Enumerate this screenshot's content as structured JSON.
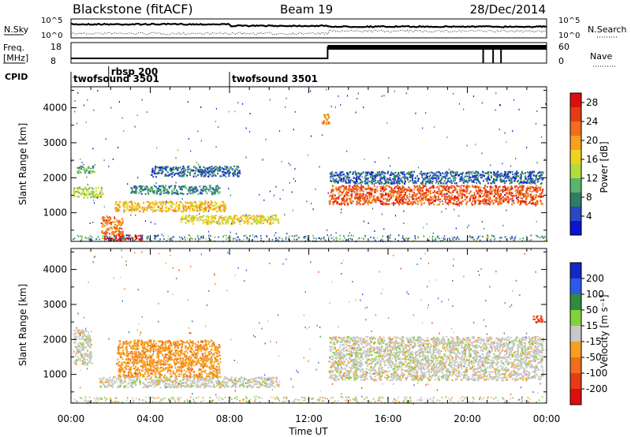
{
  "header": {
    "title": "Blackstone (fitACF)",
    "beam": "Beam 19",
    "date": "28/Dec/2014"
  },
  "top_panels": {
    "nsky_label": "N.Sky",
    "nsearch_label": "N.Search",
    "nsky_ticks": [
      "10^5",
      "10^0"
    ],
    "nsearch_ticks": [
      "10^5",
      "10^0"
    ],
    "freq_label_line1": "Freq.",
    "freq_label_line2": "[MHz]",
    "freq_ticks": [
      "18",
      "8"
    ],
    "nave_label": "Nave",
    "nave_ticks": [
      "60",
      "0"
    ],
    "cpid_label": "CPID",
    "cpid_entries": [
      {
        "name": "twofsound",
        "id": "3501",
        "start_hour": 0
      },
      {
        "name": "rbsp",
        "id": "200",
        "start_hour": 1.9
      },
      {
        "name": "twofsound",
        "id": "3501",
        "start_hour": 8.0
      }
    ]
  },
  "chart_data": [
    {
      "type": "heatmap",
      "parameter": "power",
      "ylabel": "Slant Range [km]",
      "yticks": [
        1000,
        2000,
        3000,
        4000
      ],
      "ylim": [
        180,
        4600
      ],
      "xlim_hours": [
        0,
        24
      ],
      "colorbar": {
        "label": "Power [dB]",
        "ticks": [
          4,
          8,
          12,
          16,
          20,
          24,
          28
        ],
        "range": [
          0,
          30
        ],
        "colors": [
          "#0a14d2",
          "#2848c8",
          "#2e7d64",
          "#5ab46e",
          "#b4dc3c",
          "#f0d21e",
          "#f5a01e",
          "#f06e1e",
          "#e63c14",
          "#dc0f0f"
        ]
      },
      "echo_regions": [
        {
          "from_hour": 0.1,
          "to_hour": 1.6,
          "range_km": [
            1450,
            1750
          ],
          "power_db": 14
        },
        {
          "from_hour": 0.3,
          "to_hour": 1.2,
          "range_km": [
            2150,
            2350
          ],
          "power_db": 10
        },
        {
          "from_hour": 1.6,
          "to_hour": 3.6,
          "range_km": [
            220,
            380
          ],
          "power_db": 29
        },
        {
          "from_hour": 1.5,
          "to_hour": 2.6,
          "range_km": [
            380,
            900
          ],
          "power_db": 22
        },
        {
          "from_hour": 2.2,
          "to_hour": 7.8,
          "range_km": [
            1050,
            1350
          ],
          "power_db": 18
        },
        {
          "from_hour": 3.0,
          "to_hour": 7.5,
          "range_km": [
            1550,
            1800
          ],
          "power_db": 8
        },
        {
          "from_hour": 4.0,
          "to_hour": 8.5,
          "range_km": [
            2050,
            2350
          ],
          "power_db": 6
        },
        {
          "from_hour": 5.5,
          "to_hour": 10.5,
          "range_km": [
            700,
            950
          ],
          "power_db": 16
        },
        {
          "from_hour": 12.6,
          "to_hour": 13.0,
          "range_km": [
            3550,
            3850
          ],
          "power_db": 20
        },
        {
          "from_hour": 13.0,
          "to_hour": 23.8,
          "range_km": [
            1250,
            1800
          ],
          "power_db": 24
        },
        {
          "from_hour": 13.0,
          "to_hour": 23.8,
          "range_km": [
            1850,
            2200
          ],
          "power_db": 6
        }
      ]
    },
    {
      "type": "heatmap",
      "parameter": "velocity",
      "ylabel": "Slant Range [km]",
      "yticks": [
        1000,
        2000,
        3000,
        4000
      ],
      "ylim": [
        180,
        4600
      ],
      "xlim_hours": [
        0,
        24
      ],
      "colorbar": {
        "label": "Velocity [m s⁻¹]",
        "ticks": [
          200,
          100,
          50,
          15,
          -15,
          -50,
          -100,
          -200
        ],
        "colors": [
          "#1428c8",
          "#2d5ae6",
          "#2e8c3c",
          "#82d23c",
          "#c8c8c8",
          "#f5a01e",
          "#f06e1e",
          "#e63c14",
          "#dc0f0f"
        ]
      },
      "echo_regions": [
        {
          "from_hour": 0.1,
          "to_hour": 1.0,
          "range_km": [
            1300,
            2300
          ],
          "velocity_ms": 0
        },
        {
          "from_hour": 1.4,
          "to_hour": 10.5,
          "range_km": [
            650,
            950
          ],
          "velocity_ms": 0
        },
        {
          "from_hour": 2.3,
          "to_hour": 7.5,
          "range_km": [
            950,
            2000
          ],
          "velocity_ms": -40
        },
        {
          "from_hour": 13.0,
          "to_hour": 23.8,
          "range_km": [
            850,
            2100
          ],
          "velocity_ms": 0
        },
        {
          "from_hour": 23.3,
          "to_hour": 23.8,
          "range_km": [
            2500,
            2700
          ],
          "velocity_ms": -180
        }
      ]
    }
  ],
  "x_axis": {
    "label": "Time UT",
    "ticks": [
      "00:00",
      "04:00",
      "08:00",
      "12:00",
      "16:00",
      "20:00",
      "00:00"
    ]
  }
}
